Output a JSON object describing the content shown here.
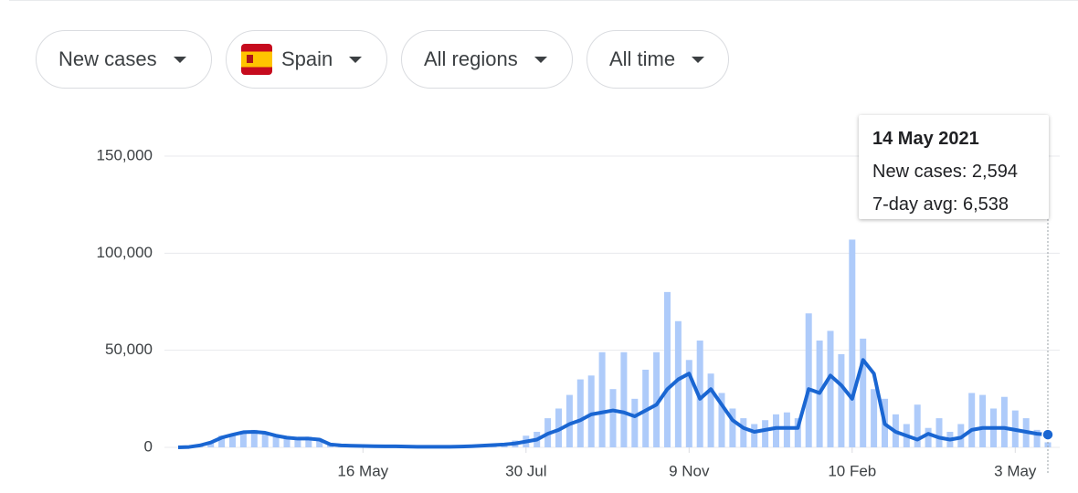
{
  "controls": {
    "metric": "New cases",
    "location": "Spain",
    "region": "All regions",
    "period": "All time"
  },
  "chart_data": {
    "type": "bar-line",
    "x": [
      null,
      null,
      null,
      null,
      null,
      null,
      null,
      null,
      null,
      null,
      null,
      null,
      null,
      null,
      null,
      null,
      null,
      "16 May",
      null,
      null,
      null,
      null,
      null,
      null,
      null,
      null,
      null,
      null,
      null,
      null,
      null,
      null,
      "30 Jul",
      null,
      null,
      null,
      null,
      null,
      null,
      null,
      null,
      null,
      null,
      null,
      null,
      null,
      null,
      "9 Nov",
      null,
      null,
      null,
      null,
      null,
      null,
      null,
      null,
      null,
      null,
      null,
      null,
      null,
      null,
      "10 Feb",
      null,
      null,
      null,
      null,
      null,
      null,
      null,
      null,
      null,
      null,
      null,
      null,
      null,
      null,
      "3 May",
      null,
      null,
      null
    ],
    "series": [
      {
        "name": "New cases",
        "color": "#aecbfa",
        "values": [
          0,
          500,
          1500,
          3000,
          6000,
          7000,
          8500,
          9000,
          7000,
          6500,
          5000,
          4000,
          5500,
          4500,
          2000,
          1000,
          800,
          1500,
          500,
          600,
          400,
          500,
          300,
          400,
          500,
          300,
          600,
          800,
          1000,
          1500,
          2000,
          3500,
          6000,
          8000,
          15000,
          20000,
          27000,
          35000,
          37000,
          49000,
          30000,
          49000,
          25000,
          40000,
          49000,
          80000,
          65000,
          45000,
          55000,
          38000,
          28000,
          20000,
          15000,
          12000,
          14000,
          17000,
          18000,
          15000,
          69000,
          55000,
          60000,
          48000,
          107000,
          56000,
          30000,
          25000,
          17000,
          12000,
          22000,
          10000,
          15000,
          8000,
          12000,
          28000,
          27000,
          20000,
          26000,
          19000,
          15000,
          9000,
          2594
        ]
      },
      {
        "name": "7-day avg",
        "color": "#1a66d2",
        "values": [
          0,
          200,
          1000,
          2500,
          5000,
          6500,
          7800,
          8000,
          7500,
          6000,
          5000,
          4500,
          4500,
          4000,
          1500,
          1000,
          800,
          700,
          600,
          500,
          500,
          400,
          300,
          300,
          300,
          300,
          400,
          600,
          900,
          1200,
          1500,
          2000,
          3000,
          4000,
          7000,
          9000,
          12000,
          14000,
          17000,
          18000,
          19000,
          18000,
          16000,
          19000,
          22000,
          30000,
          35000,
          38000,
          25000,
          30000,
          22000,
          14000,
          10000,
          8000,
          9000,
          10000,
          10000,
          10000,
          30000,
          28000,
          37000,
          32000,
          25000,
          45000,
          38000,
          12000,
          8000,
          6000,
          4000,
          7000,
          5000,
          4000,
          5000,
          9000,
          10000,
          10000,
          10000,
          9000,
          8000,
          7000,
          6538
        ]
      }
    ],
    "ylim": [
      0,
      150000
    ],
    "yticks": [
      0,
      {
        "value": 50000,
        "label": "50,000"
      },
      {
        "value": 100000,
        "label": "100,000"
      },
      {
        "value": 150000,
        "label": "150,000"
      }
    ],
    "grid": true,
    "tooltip": {
      "title": "14 May 2021",
      "lines": [
        "New cases: 2,594",
        "7-day avg: 6,538"
      ]
    }
  }
}
